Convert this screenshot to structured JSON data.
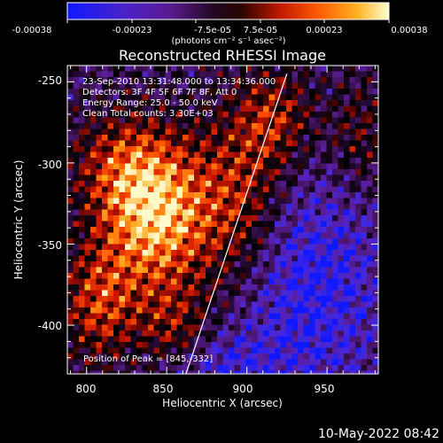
{
  "colorbar": {
    "ticks": [
      "-0.00038",
      "-0.00023",
      "-7.5e-05",
      "7.5e-05",
      "0.00023",
      "0.00038"
    ],
    "tick_values": [
      -0.00038,
      -0.00023,
      -7.5e-05,
      7.5e-05,
      0.00023,
      0.00038
    ],
    "range": [
      -0.00038,
      0.00038
    ],
    "units": "(photons cm⁻² s⁻¹ asec⁻²)",
    "colors": [
      "#1018ff",
      "#5a1aa8",
      "#2a0a3a",
      "#000000",
      "#7a0800",
      "#e02000",
      "#ff8a10",
      "#fff8c0"
    ]
  },
  "chart_data": {
    "type": "heatmap",
    "title": "Reconstructed RHESSI Image",
    "xlabel": "Heliocentric X (arcsec)",
    "ylabel": "Heliocentric Y (arcsec)",
    "xlim": [
      788,
      982
    ],
    "ylim": [
      -430,
      -240
    ],
    "x_ticks": [
      800,
      850,
      900,
      950
    ],
    "y_ticks": [
      -250,
      -300,
      -350,
      -400
    ],
    "info_lines": [
      "23-Sep-2010 13:31:48.000 to 13:34:36.000",
      "Detectors: 3F 4F 5F 6F 7F 8F, Att 0",
      "Energy Range: 25.0 - 50.0 keV",
      "Clean    Total counts: 3.30E+03"
    ],
    "peak_text": "Position of Peak = [845,-332]",
    "peak": [
      845,
      -332
    ],
    "limb_line": [
      [
        862,
        -430
      ],
      [
        925,
        -245
      ]
    ],
    "grid": false
  },
  "footer": {
    "timestamp": "10-May-2022 08:42"
  }
}
